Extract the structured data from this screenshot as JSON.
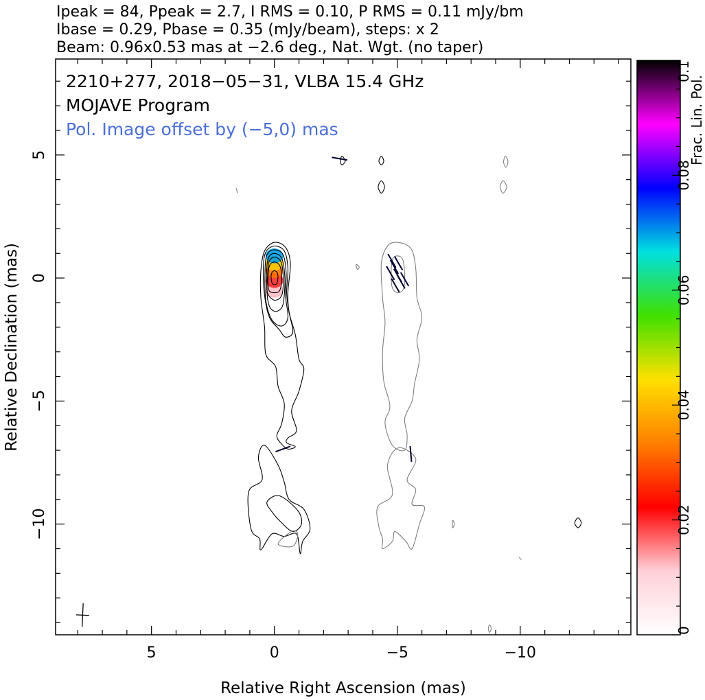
{
  "header": {
    "line1": "Ipeak = 84, Ppeak = 2.7, I RMS = 0.10, P RMS = 0.11 mJy/bm",
    "line2": "Ibase = 0.29, Pbase = 0.35 (mJy/beam), steps: x 2",
    "line3": "Beam: 0.96x0.53 mas at −2.6 deg., Nat. Wgt. (no taper)"
  },
  "annotations": {
    "source": "2210+277, 2018−05−31, VLBA 15.4 GHz",
    "program": "MOJAVE Program",
    "pol_offset": "Pol. Image offset by (−5,0) mas"
  },
  "colors": {
    "stokes_i_contour": "#000000",
    "pol_contour": "#7f7f7f",
    "pol_offset_text": "#4a6fd6",
    "evpa_ticks": "#000030"
  },
  "chart_data": {
    "type": "heatmap",
    "title": "",
    "xlabel": "Relative Right Ascension (mas)",
    "ylabel": "Relative Declination (mas)",
    "xlim": [
      8.9,
      -14.5
    ],
    "ylim": [
      -14.5,
      8.9
    ],
    "x_axis_reversed": true,
    "x_ticks": [
      5,
      0,
      -5,
      -10
    ],
    "x_tick_labels": [
      "5",
      "0",
      "−5",
      "−10"
    ],
    "y_ticks": [
      5,
      0,
      -5,
      -10
    ],
    "y_tick_labels": [
      "5",
      "0",
      "−5",
      "−10"
    ],
    "grid": false,
    "beam": {
      "major_mas": 0.96,
      "minor_mas": 0.53,
      "pa_deg": -2.6,
      "center": [
        7.8,
        -13.7
      ]
    },
    "stokes_i": {
      "peak_mJy_per_beam": 84,
      "base_mJy_per_beam": 0.29,
      "contour_step_factor": 2
    },
    "pol": {
      "peak_mJy_per_beam": 2.7,
      "base_mJy_per_beam": 0.35,
      "image_offset_mas": [
        -5,
        0
      ]
    },
    "colorbar": {
      "label": "Frac. Lin. Pol.",
      "range": [
        0,
        0.1
      ],
      "ticks": [
        0,
        0.02,
        0.04,
        0.06,
        0.08,
        0.1
      ],
      "tick_labels": [
        "0",
        "0.02",
        "0.04",
        "0.06",
        "0.08",
        "0.1"
      ],
      "colormap": [
        "#ffffff",
        "#ffd0d8",
        "#ff0000",
        "#ff7f00",
        "#ffe000",
        "#40e000",
        "#00e0e0",
        "#0000ff",
        "#ff00ff",
        "#000000"
      ]
    },
    "core_fractional_pol": [
      {
        "x": 0.0,
        "y": -0.5,
        "frac": 0.012
      },
      {
        "x": 0.0,
        "y": -0.1,
        "frac": 0.02
      },
      {
        "x": 0.0,
        "y": 0.3,
        "frac": 0.032
      },
      {
        "x": 0.0,
        "y": 0.6,
        "frac": 0.042
      },
      {
        "x": 0.0,
        "y": 0.9,
        "frac": 0.07
      }
    ],
    "total_intensity_contours": [
      {
        "level": 1,
        "ring": [
          [
            0.0,
            1.45
          ],
          [
            -0.45,
            1.25
          ],
          [
            -0.65,
            0.6
          ],
          [
            -0.55,
            -0.6
          ],
          [
            -0.6,
            -1.4
          ],
          [
            -0.85,
            -2.3
          ],
          [
            -1.0,
            -3.3
          ],
          [
            -1.2,
            -3.7
          ],
          [
            -1.0,
            -4.6
          ],
          [
            -0.7,
            -5.4
          ],
          [
            -0.9,
            -6.2
          ],
          [
            -0.55,
            -6.5
          ],
          [
            -0.5,
            -6.7
          ],
          [
            -0.85,
            -6.85
          ],
          [
            -0.55,
            -6.95
          ],
          [
            -0.25,
            -6.7
          ],
          [
            -0.1,
            -6.4
          ],
          [
            -0.3,
            -5.9
          ],
          [
            -0.4,
            -5.1
          ],
          [
            -0.15,
            -4.4
          ],
          [
            -0.05,
            -3.6
          ],
          [
            0.35,
            -3.1
          ],
          [
            0.4,
            -2.0
          ],
          [
            0.55,
            -0.8
          ],
          [
            0.55,
            0.3
          ],
          [
            0.4,
            1.1
          ]
        ]
      },
      {
        "level": 2,
        "ring": [
          [
            0.0,
            1.3
          ],
          [
            -0.4,
            1.1
          ],
          [
            -0.55,
            0.4
          ],
          [
            -0.5,
            -0.6
          ],
          [
            -0.6,
            -1.4
          ],
          [
            -0.75,
            -2.2
          ],
          [
            -0.45,
            -2.4
          ],
          [
            -0.2,
            -2.1
          ],
          [
            0.2,
            -1.6
          ],
          [
            0.4,
            -0.7
          ],
          [
            0.45,
            0.4
          ],
          [
            0.35,
            1.05
          ]
        ]
      },
      {
        "level": 3,
        "ring": [
          [
            0.0,
            1.15
          ],
          [
            -0.35,
            0.95
          ],
          [
            -0.48,
            0.2
          ],
          [
            -0.45,
            -0.7
          ],
          [
            -0.55,
            -1.6
          ],
          [
            -0.3,
            -1.95
          ],
          [
            0.1,
            -1.7
          ],
          [
            0.35,
            -0.9
          ],
          [
            0.38,
            0.3
          ],
          [
            0.3,
            0.95
          ]
        ]
      },
      {
        "level": 4,
        "ring": [
          [
            0.0,
            1.0
          ],
          [
            -0.3,
            0.8
          ],
          [
            -0.42,
            0.1
          ],
          [
            -0.4,
            -0.7
          ],
          [
            -0.3,
            -1.2
          ],
          [
            0.0,
            -1.35
          ],
          [
            0.25,
            -1.0
          ],
          [
            0.32,
            0.1
          ],
          [
            0.25,
            0.8
          ]
        ]
      },
      {
        "level": 5,
        "ring": [
          [
            0.0,
            0.85
          ],
          [
            -0.27,
            0.65
          ],
          [
            -0.36,
            0.0
          ],
          [
            -0.3,
            -0.7
          ],
          [
            0.0,
            -0.9
          ],
          [
            0.28,
            -0.6
          ],
          [
            0.28,
            0.05
          ],
          [
            0.22,
            0.65
          ]
        ]
      },
      {
        "level": 6,
        "ring": [
          [
            0.0,
            0.65
          ],
          [
            -0.22,
            0.5
          ],
          [
            -0.3,
            0.0
          ],
          [
            -0.22,
            -0.5
          ],
          [
            0.0,
            -0.6
          ],
          [
            0.22,
            -0.5
          ],
          [
            0.26,
            0.0
          ],
          [
            0.2,
            0.5
          ]
        ]
      },
      {
        "level": 7,
        "ring": [
          [
            0.0,
            0.3
          ],
          [
            -0.12,
            0.2
          ],
          [
            -0.14,
            -0.05
          ],
          [
            -0.08,
            -0.25
          ],
          [
            0.06,
            -0.25
          ],
          [
            0.13,
            -0.05
          ],
          [
            0.11,
            0.2
          ]
        ]
      },
      {
        "level": 1,
        "ring": [
          [
            0.4,
            -6.8
          ],
          [
            0.65,
            -7.3
          ],
          [
            0.5,
            -8.2
          ],
          [
            1.05,
            -8.7
          ],
          [
            0.95,
            -10.2
          ],
          [
            0.6,
            -10.6
          ],
          [
            0.55,
            -11.05
          ],
          [
            0.1,
            -10.4
          ],
          [
            -0.4,
            -10.5
          ],
          [
            -0.9,
            -10.4
          ],
          [
            -1.05,
            -11.2
          ],
          [
            -1.15,
            -10.7
          ],
          [
            -1.45,
            -10.2
          ],
          [
            -1.2,
            -9.4
          ],
          [
            -0.6,
            -9.0
          ],
          [
            -0.4,
            -8.3
          ],
          [
            -0.15,
            -7.6
          ]
        ]
      },
      {
        "level": 2,
        "ring": [
          [
            -0.2,
            -8.85
          ],
          [
            -0.95,
            -9.45
          ],
          [
            -1.1,
            -10.0
          ],
          [
            -0.75,
            -10.3
          ],
          [
            -0.3,
            -9.95
          ],
          [
            0.1,
            -9.5
          ],
          [
            0.3,
            -9.1
          ]
        ]
      },
      {
        "level": 1,
        "ring": [
          [
            -12.35,
            -9.75
          ],
          [
            -12.48,
            -9.95
          ],
          [
            -12.35,
            -10.15
          ],
          [
            -12.22,
            -9.95
          ]
        ]
      },
      {
        "level": 1,
        "ring": [
          [
            -4.35,
            4.95
          ],
          [
            -4.45,
            4.75
          ],
          [
            -4.35,
            4.6
          ],
          [
            -4.25,
            4.75
          ]
        ]
      },
      {
        "level": 1,
        "ring": [
          [
            -4.35,
            3.95
          ],
          [
            -4.48,
            3.7
          ],
          [
            -4.35,
            3.45
          ],
          [
            -4.22,
            3.7
          ]
        ]
      },
      {
        "level": 1,
        "ring": [
          [
            -2.75,
            4.95
          ],
          [
            -2.88,
            4.75
          ],
          [
            -2.75,
            4.6
          ],
          [
            -2.68,
            4.75
          ]
        ]
      }
    ],
    "pol_contours": [
      {
        "level": 1,
        "ring": [
          [
            -5.0,
            1.45
          ],
          [
            -4.6,
            1.3
          ],
          [
            -4.35,
            0.6
          ],
          [
            -4.4,
            -0.8
          ],
          [
            -4.5,
            -1.8
          ],
          [
            -4.4,
            -3.0
          ],
          [
            -4.45,
            -4.2
          ],
          [
            -4.7,
            -5.2
          ],
          [
            -4.5,
            -5.9
          ],
          [
            -4.8,
            -6.8
          ],
          [
            -5.3,
            -7.0
          ],
          [
            -5.4,
            -6.4
          ],
          [
            -5.3,
            -5.7
          ],
          [
            -5.6,
            -5.0
          ],
          [
            -5.7,
            -4.3
          ],
          [
            -5.9,
            -3.3
          ],
          [
            -5.8,
            -2.5
          ],
          [
            -6.0,
            -1.6
          ],
          [
            -5.8,
            -0.8
          ],
          [
            -5.75,
            0.4
          ],
          [
            -5.55,
            1.2
          ]
        ]
      },
      {
        "level": 1,
        "ring": [
          [
            -5.0,
            0.9
          ],
          [
            -4.8,
            0.75
          ],
          [
            -4.75,
            0.1
          ],
          [
            -4.8,
            -0.4
          ],
          [
            -5.0,
            -0.6
          ],
          [
            -5.25,
            -0.45
          ],
          [
            -5.3,
            0.1
          ],
          [
            -5.22,
            0.75
          ]
        ]
      },
      {
        "level": 1,
        "ring": [
          [
            -5.05,
            -6.9
          ],
          [
            -5.75,
            -7.35
          ],
          [
            -5.4,
            -8.2
          ],
          [
            -5.75,
            -8.6
          ],
          [
            -5.6,
            -9.2
          ],
          [
            -6.1,
            -9.3
          ],
          [
            -5.9,
            -10.0
          ],
          [
            -5.6,
            -11.0
          ],
          [
            -5.35,
            -10.7
          ],
          [
            -4.9,
            -10.3
          ],
          [
            -4.8,
            -10.7
          ],
          [
            -4.4,
            -11.0
          ],
          [
            -4.4,
            -10.6
          ],
          [
            -4.25,
            -10.1
          ],
          [
            -4.2,
            -9.3
          ],
          [
            -4.8,
            -8.8
          ],
          [
            -4.6,
            -7.6
          ]
        ]
      },
      {
        "level": 1,
        "ring": [
          [
            -0.15,
            -10.8
          ],
          [
            -0.75,
            -10.9
          ],
          [
            -0.95,
            -10.4
          ],
          [
            -0.7,
            -10.3
          ]
        ]
      },
      {
        "level": 1,
        "ring": [
          [
            -9.4,
            4.95
          ],
          [
            -9.5,
            4.75
          ],
          [
            -9.42,
            4.5
          ],
          [
            -9.32,
            4.72
          ]
        ]
      },
      {
        "level": 1,
        "ring": [
          [
            -9.3,
            3.95
          ],
          [
            -9.45,
            3.7
          ],
          [
            -9.3,
            3.45
          ],
          [
            -9.18,
            3.7
          ]
        ]
      },
      {
        "level": 1,
        "ring": [
          [
            -3.32,
            0.55
          ],
          [
            -3.45,
            0.45
          ],
          [
            -3.38,
            0.35
          ]
        ]
      },
      {
        "level": 1,
        "ring": [
          [
            -8.75,
            -14.1
          ],
          [
            -8.82,
            -14.25
          ],
          [
            -8.75,
            -14.4
          ],
          [
            -8.7,
            -14.25
          ]
        ]
      },
      {
        "level": 1,
        "ring": [
          [
            -7.25,
            -9.85
          ],
          [
            -7.32,
            -10.0
          ],
          [
            -7.25,
            -10.15
          ]
        ]
      },
      {
        "level": 1,
        "ring": [
          [
            -9.95,
            -11.35
          ],
          [
            -10.05,
            -11.45
          ]
        ]
      },
      {
        "level": 1,
        "ring": [
          [
            1.55,
            3.65
          ],
          [
            1.5,
            3.45
          ]
        ]
      }
    ],
    "evpa_ticks": [
      {
        "x": -4.72,
        "y": 0.2,
        "pa_deg": 30
      },
      {
        "x": -4.88,
        "y": 0.45,
        "pa_deg": 30
      },
      {
        "x": -5.02,
        "y": 0.1,
        "pa_deg": 30
      },
      {
        "x": -5.15,
        "y": -0.15,
        "pa_deg": 30
      },
      {
        "x": -4.92,
        "y": -0.3,
        "pa_deg": 30
      },
      {
        "x": -5.05,
        "y": 0.6,
        "pa_deg": 30
      },
      {
        "x": -5.3,
        "y": -0.05,
        "pa_deg": 30
      },
      {
        "x": -4.78,
        "y": 0.7,
        "pa_deg": 30
      },
      {
        "x": -5.55,
        "y": -7.15,
        "pa_deg": 5
      },
      {
        "x": -2.65,
        "y": 4.85,
        "pa_deg": 80
      },
      {
        "x": -0.35,
        "y": -6.95,
        "pa_deg": -70
      }
    ]
  }
}
